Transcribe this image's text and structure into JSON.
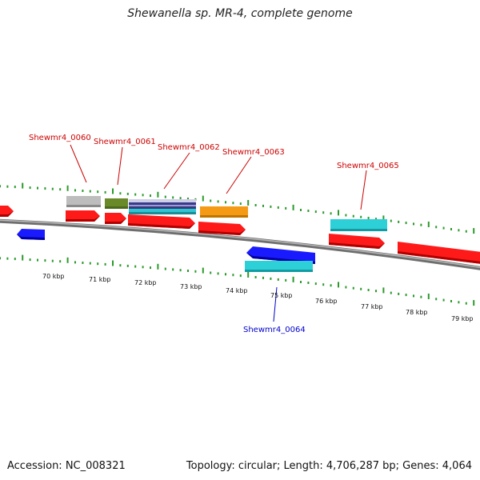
{
  "title": "Shewanella sp. MR-4, complete genome",
  "footer": {
    "accession": "Accession: NC_008321",
    "summary": "Topology: circular; Length: 4,706,287 bp; Genes: 4,064"
  },
  "colors": {
    "cds": "#ff0000",
    "gene_label_forward": "#cc0000",
    "gene_label_reverse": "#0000cc",
    "backbone": "#7a7a7a",
    "ticks": "#2a9a2a"
  },
  "scale_labels": [
    "70 kbp",
    "71 kbp",
    "72 kbp",
    "73 kbp",
    "74 kbp",
    "75 kbp",
    "76 kbp",
    "77 kbp",
    "78 kbp",
    "79 kbp"
  ],
  "gene_labels": [
    {
      "text": "Shewmr4_0060",
      "strand": "forward"
    },
    {
      "text": "Shewmr4_0061",
      "strand": "forward"
    },
    {
      "text": "Shewmr4_0062",
      "strand": "forward"
    },
    {
      "text": "Shewmr4_0063",
      "strand": "forward"
    },
    {
      "text": "Shewmr4_0065",
      "strand": "forward"
    },
    {
      "text": "Shewmr4_0064",
      "strand": "reverse"
    }
  ]
}
